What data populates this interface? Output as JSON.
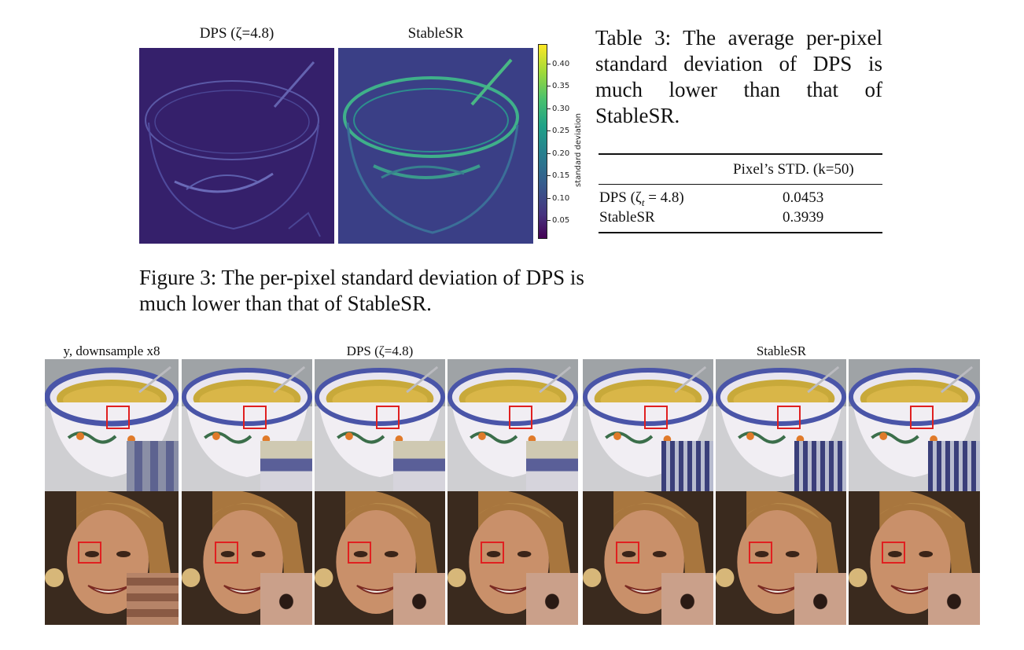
{
  "heatmap_figure": {
    "panels": [
      {
        "title": "DPS (ζ=4.8)",
        "variant": "dps"
      },
      {
        "title": "StableSR",
        "variant": "stablesr"
      }
    ],
    "colorbar": {
      "label": "standard deviation",
      "ticks": [
        "0.40",
        "0.35",
        "0.30",
        "0.25",
        "0.20",
        "0.15",
        "0.10",
        "0.05"
      ],
      "colormap": "viridis"
    },
    "caption": "Figure 3: The per-pixel standard deviation of DPS is much lower than that of StableSR."
  },
  "table3": {
    "caption": "Table 3: The average per-pixel standard deviation of DPS is much lower than that of StableSR.",
    "header": "Pixel’s STD. (k=50)",
    "rows": [
      {
        "method": "DPS (ζ",
        "method_sub": "t",
        "method_rest": " = 4.8)",
        "value": "0.0453"
      },
      {
        "method": "StableSR",
        "value": "0.3939"
      }
    ]
  },
  "comparison_grid": {
    "group_titles": [
      "y, downsample x8",
      "DPS (ζ=4.8)",
      "StableSR"
    ],
    "rows": [
      "bowl",
      "face"
    ],
    "highlight_color": "#e02020"
  }
}
